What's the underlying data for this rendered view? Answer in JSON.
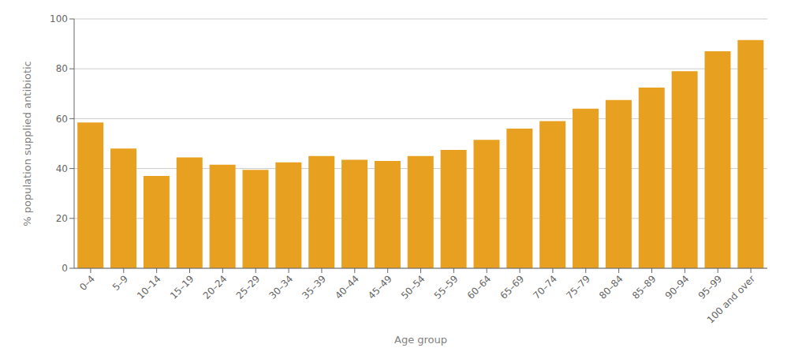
{
  "chart_data": {
    "type": "bar",
    "categories": [
      "0–4",
      "5–9",
      "10–14",
      "15–19",
      "20–24",
      "25–29",
      "30–34",
      "35–39",
      "40–44",
      "45–49",
      "50–54",
      "55–59",
      "60–64",
      "65–69",
      "70–74",
      "75–79",
      "80–84",
      "85–89",
      "90–94",
      "95–99",
      "100 and over"
    ],
    "values": [
      58.5,
      48.0,
      37.0,
      44.5,
      41.5,
      39.5,
      42.5,
      45.0,
      43.5,
      43.0,
      45.0,
      47.5,
      51.5,
      56.0,
      59.0,
      64.0,
      67.5,
      72.5,
      79.0,
      87.0,
      91.5
    ],
    "color": "#E8A020",
    "ylabel": "% population supplied antibiotic",
    "xlabel": "Age group",
    "ylim": [
      0,
      100
    ],
    "yticks": [
      0,
      20,
      40,
      60,
      80,
      100
    ],
    "grid": true
  }
}
